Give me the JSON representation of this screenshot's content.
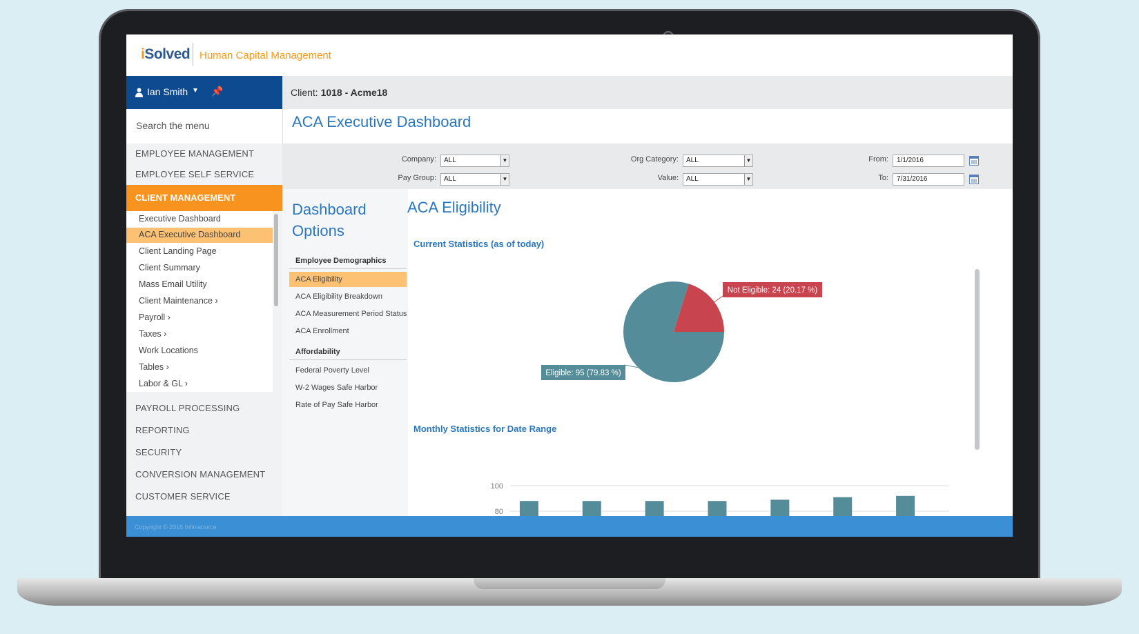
{
  "brand": {
    "logo_prefix": "i",
    "logo_rest": "Solved",
    "app_title": "Human Capital Management"
  },
  "user": {
    "name": "Ian Smith"
  },
  "client": {
    "label": "Client:",
    "value": "1018 - Acme18"
  },
  "search": {
    "placeholder": "Search the menu"
  },
  "nav": {
    "sections_top": [
      "EMPLOYEE MANAGEMENT",
      "EMPLOYEE SELF SERVICE"
    ],
    "active_section": "CLIENT MANAGEMENT",
    "sub_items": [
      "Executive Dashboard",
      "ACA Executive Dashboard",
      "Client Landing Page",
      "Client Summary",
      "Mass Email Utility",
      "Client Maintenance  ›",
      "Payroll  ›",
      "Taxes  ›",
      "Work Locations",
      "Tables  ›",
      "Labor & GL  ›"
    ],
    "sections_bottom": [
      "PAYROLL PROCESSING",
      "REPORTING",
      "SECURITY",
      "CONVERSION MANAGEMENT",
      "CUSTOMER SERVICE"
    ]
  },
  "page": {
    "title": "ACA Executive Dashboard"
  },
  "filters": {
    "company_label": "Company:",
    "company_value": "ALL",
    "paygroup_label": "Pay Group:",
    "paygroup_value": "ALL",
    "orgcat_label": "Org Category:",
    "orgcat_value": "ALL",
    "value_label": "Value:",
    "value_value": "ALL",
    "from_label": "From:",
    "from_value": "1/1/2016",
    "to_label": "To:",
    "to_value": "7/31/2016"
  },
  "options": {
    "title": "Dashboard Options",
    "group1": "Employee Demographics",
    "group1_items": [
      "ACA Eligibility",
      "ACA Eligibility Breakdown",
      "ACA Measurement Period Status",
      "ACA Enrollment"
    ],
    "group2": "Affordability",
    "group2_items": [
      "Federal Poverty Level",
      "W-2 Wages Safe Harbor",
      "Rate of Pay Safe Harbor"
    ]
  },
  "content": {
    "title": "ACA Eligibility",
    "current_stats": "Current Statistics (as of today)",
    "monthly_stats": "Monthly Statistics for Date Range"
  },
  "chart_data": [
    {
      "type": "pie",
      "slices": [
        {
          "label": "Eligible: 95 (79.83 %)",
          "value": 95,
          "percent": 79.83,
          "color": "#548d99"
        },
        {
          "label": "Not Eligible: 24 (20.17 %)",
          "value": 24,
          "percent": 20.17,
          "color": "#c8444f"
        }
      ]
    },
    {
      "type": "bar",
      "categories": [
        "",
        "",
        "",
        "",
        "",
        "",
        ""
      ],
      "values": [
        88,
        88,
        88,
        88,
        89,
        91,
        92
      ],
      "yticks": [
        "100",
        "80"
      ],
      "ylim": [
        70,
        100
      ],
      "color": "#548d99"
    }
  ],
  "footer": {
    "copyright": "Copyright © 2016 Infinisource"
  }
}
